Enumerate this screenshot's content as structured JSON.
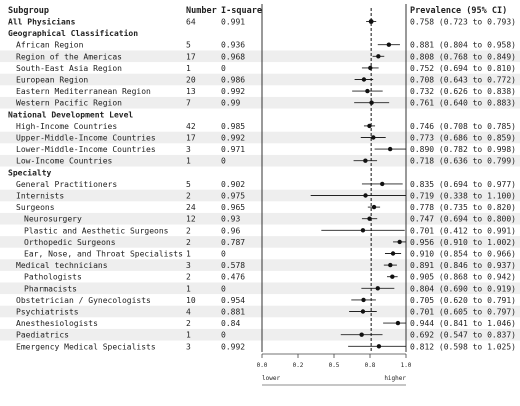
{
  "headers": {
    "subgroup": "Subgroup",
    "number": "Number",
    "isquare": "I-square",
    "prevalence": "Prevalence (95% CI)"
  },
  "axis": {
    "ticks": [
      "0.0",
      "0.2",
      "0.5",
      "0.8",
      "1.0"
    ],
    "tick_values": [
      0.0,
      0.25,
      0.5,
      0.75,
      1.0
    ],
    "lower_label": "lower",
    "higher_label": "higher"
  },
  "chart_data": {
    "type": "forest",
    "xlim": [
      0,
      1
    ],
    "reference_line": 0.758,
    "rows": [
      {
        "label": "All Physicians",
        "kind": "total",
        "indent": 0,
        "n": "64",
        "i2": "0.991",
        "est": 0.758,
        "lo": 0.723,
        "hi": 0.793,
        "ci": "0.758 (0.723 to 0.793)"
      },
      {
        "label": "Geographical Classification",
        "kind": "section"
      },
      {
        "label": "African Region",
        "kind": "row",
        "indent": 1,
        "n": "5",
        "i2": "0.936",
        "est": 0.881,
        "lo": 0.804,
        "hi": 0.958,
        "ci": "0.881 (0.804 to 0.958)"
      },
      {
        "label": "Region of the Americas",
        "kind": "row",
        "indent": 1,
        "n": "17",
        "i2": "0.968",
        "est": 0.808,
        "lo": 0.768,
        "hi": 0.849,
        "ci": "0.808 (0.768 to 0.849)"
      },
      {
        "label": "South-East Asia Region",
        "kind": "row",
        "indent": 1,
        "n": "1",
        "i2": "0",
        "est": 0.752,
        "lo": 0.694,
        "hi": 0.81,
        "ci": "0.752 (0.694 to 0.810)"
      },
      {
        "label": "European Region",
        "kind": "row",
        "indent": 1,
        "n": "20",
        "i2": "0.986",
        "est": 0.708,
        "lo": 0.643,
        "hi": 0.772,
        "ci": "0.708 (0.643 to 0.772)"
      },
      {
        "label": "Eastern Mediterranean Region",
        "kind": "row",
        "indent": 1,
        "n": "13",
        "i2": "0.992",
        "est": 0.732,
        "lo": 0.626,
        "hi": 0.838,
        "ci": "0.732 (0.626 to 0.838)"
      },
      {
        "label": "Western Pacific Region",
        "kind": "row",
        "indent": 1,
        "n": "7",
        "i2": "0.99",
        "est": 0.761,
        "lo": 0.64,
        "hi": 0.883,
        "ci": "0.761 (0.640 to 0.883)"
      },
      {
        "label": "National Development Level",
        "kind": "section"
      },
      {
        "label": "High-Income Countries",
        "kind": "row",
        "indent": 1,
        "n": "42",
        "i2": "0.985",
        "est": 0.746,
        "lo": 0.708,
        "hi": 0.785,
        "ci": "0.746 (0.708 to 0.785)"
      },
      {
        "label": "Upper-Middle-Income Countries",
        "kind": "row",
        "indent": 1,
        "n": "17",
        "i2": "0.992",
        "est": 0.773,
        "lo": 0.686,
        "hi": 0.859,
        "ci": "0.773 (0.686 to 0.859)"
      },
      {
        "label": "Lower-Middle-Income Countries",
        "kind": "row",
        "indent": 1,
        "n": "3",
        "i2": "0.971",
        "est": 0.89,
        "lo": 0.782,
        "hi": 0.998,
        "ci": "0.890 (0.782 to 0.998)"
      },
      {
        "label": "Low-Income Countries",
        "kind": "row",
        "indent": 1,
        "n": "1",
        "i2": "0",
        "est": 0.718,
        "lo": 0.636,
        "hi": 0.799,
        "ci": "0.718 (0.636 to 0.799)"
      },
      {
        "label": "Specialty",
        "kind": "section"
      },
      {
        "label": "General Practitioners",
        "kind": "row",
        "indent": 1,
        "n": "5",
        "i2": "0.902",
        "est": 0.835,
        "lo": 0.694,
        "hi": 0.977,
        "ci": "0.835 (0.694 to 0.977)"
      },
      {
        "label": "Internists",
        "kind": "row",
        "indent": 1,
        "n": "2",
        "i2": "0.975",
        "est": 0.719,
        "lo": 0.338,
        "hi": 1.1,
        "ci": "0.719 (0.338 to 1.100)"
      },
      {
        "label": "Surgeons",
        "kind": "row",
        "indent": 1,
        "n": "24",
        "i2": "0.965",
        "est": 0.778,
        "lo": 0.735,
        "hi": 0.82,
        "ci": "0.778 (0.735 to 0.820)"
      },
      {
        "label": "Neurosurgery",
        "kind": "row",
        "indent": 2,
        "n": "12",
        "i2": "0.93",
        "est": 0.747,
        "lo": 0.694,
        "hi": 0.8,
        "ci": "0.747 (0.694 to 0.800)"
      },
      {
        "label": "Plastic and Aesthetic Surgeons",
        "kind": "row",
        "indent": 2,
        "n": "2",
        "i2": "0.96",
        "est": 0.701,
        "lo": 0.412,
        "hi": 0.991,
        "ci": "0.701 (0.412 to 0.991)"
      },
      {
        "label": "Orthopedic Surgeons",
        "kind": "row",
        "indent": 2,
        "n": "2",
        "i2": "0.787",
        "est": 0.956,
        "lo": 0.91,
        "hi": 1.002,
        "ci": "0.956 (0.910 to 1.002)"
      },
      {
        "label": "Ear, Nose, and Throat Specialists",
        "kind": "row",
        "indent": 2,
        "n": "1",
        "i2": "0",
        "est": 0.91,
        "lo": 0.854,
        "hi": 0.966,
        "ci": "0.910 (0.854 to 0.966)"
      },
      {
        "label": "Medical technicians",
        "kind": "row",
        "indent": 1,
        "n": "3",
        "i2": "0.578",
        "est": 0.891,
        "lo": 0.846,
        "hi": 0.937,
        "ci": "0.891 (0.846 to 0.937)"
      },
      {
        "label": "Pathologists",
        "kind": "row",
        "indent": 2,
        "n": "2",
        "i2": "0.476",
        "est": 0.905,
        "lo": 0.868,
        "hi": 0.942,
        "ci": "0.905 (0.868 to 0.942)"
      },
      {
        "label": "Pharmacists",
        "kind": "row",
        "indent": 2,
        "n": "1",
        "i2": "0",
        "est": 0.804,
        "lo": 0.69,
        "hi": 0.919,
        "ci": "0.804 (0.690 to 0.919)"
      },
      {
        "label": "Obstetrician / Gynecologists",
        "kind": "row",
        "indent": 1,
        "n": "10",
        "i2": "0.954",
        "est": 0.705,
        "lo": 0.62,
        "hi": 0.791,
        "ci": "0.705 (0.620 to 0.791)"
      },
      {
        "label": "Psychiatrists",
        "kind": "row",
        "indent": 1,
        "n": "4",
        "i2": "0.881",
        "est": 0.701,
        "lo": 0.605,
        "hi": 0.797,
        "ci": "0.701 (0.605 to 0.797)"
      },
      {
        "label": "Anesthesiologists",
        "kind": "row",
        "indent": 1,
        "n": "2",
        "i2": "0.84",
        "est": 0.944,
        "lo": 0.841,
        "hi": 1.046,
        "ci": "0.944 (0.841 to 1.046)"
      },
      {
        "label": "Paediatrics",
        "kind": "row",
        "indent": 1,
        "n": "1",
        "i2": "0",
        "est": 0.692,
        "lo": 0.547,
        "hi": 0.837,
        "ci": "0.692 (0.547 to 0.837)"
      },
      {
        "label": "Emergency Medical Specialists",
        "kind": "row",
        "indent": 1,
        "n": "3",
        "i2": "0.992",
        "est": 0.812,
        "lo": 0.598,
        "hi": 1.025,
        "ci": "0.812 (0.598 to 1.025)"
      }
    ]
  }
}
